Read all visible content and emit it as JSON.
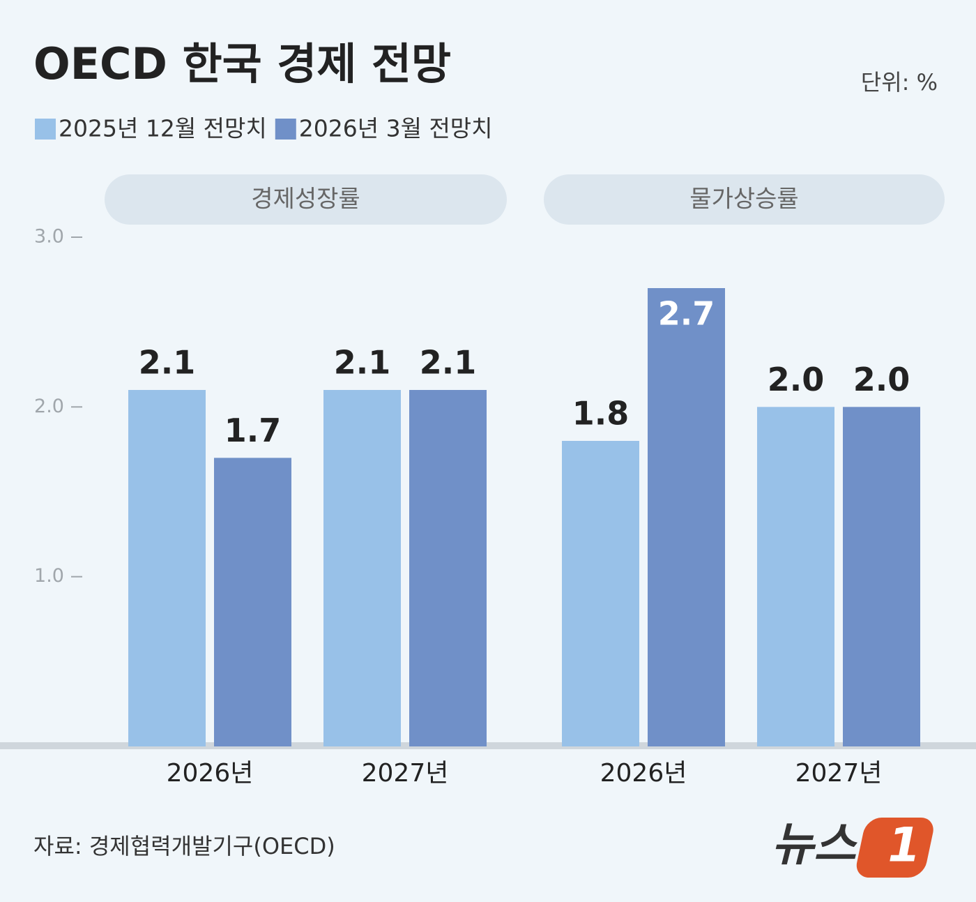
{
  "chart_data": {
    "type": "bar",
    "title": "OECD 한국 경제 전망",
    "unit_label": "단위: %",
    "category_groups": [
      "경제성장률",
      "물가상승률"
    ],
    "categories": [
      "2026년",
      "2027년",
      "2026년",
      "2027년"
    ],
    "series": [
      {
        "name": "2025년 12월 전망치",
        "color": "#98c1e8",
        "values": [
          2.1,
          2.1,
          1.8,
          2.0
        ],
        "value_labels": [
          "2.1",
          "2.1",
          "1.8",
          "2.0"
        ]
      },
      {
        "name": "2026년 3월 전망치",
        "color": "#7090c8",
        "values": [
          1.7,
          2.1,
          2.7,
          2.0
        ],
        "value_labels": [
          "1.7",
          "2.1",
          "2.7",
          "2.0"
        ]
      }
    ],
    "ylim": [
      0,
      3
    ],
    "yticks": [
      {
        "value": 1,
        "label": "1.0"
      },
      {
        "value": 2,
        "label": "2.0"
      },
      {
        "value": 3,
        "label": "3.0"
      }
    ],
    "source": "자료: 경제협력개발기구(OECD)",
    "logo": {
      "text": "뉴스",
      "mark": "1"
    }
  }
}
